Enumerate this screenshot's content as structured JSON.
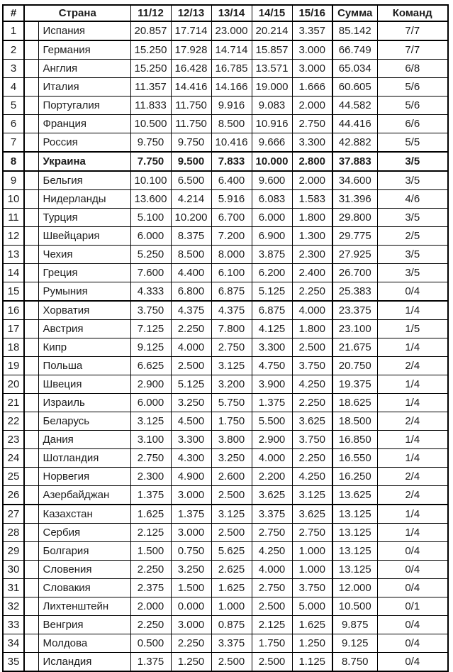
{
  "table": {
    "headers": {
      "rank": "#",
      "country": "Страна",
      "seasons": [
        "11/12",
        "12/13",
        "13/14",
        "14/15",
        "15/16"
      ],
      "sum": "Сумма",
      "teams": "Команд"
    },
    "rows": [
      {
        "rank": "1",
        "country": "Испания",
        "seasons": [
          "20.857",
          "17.714",
          "23.000",
          "20.214",
          "3.357"
        ],
        "sum": "85.142",
        "teams": "7/7",
        "highlight": false,
        "thick_bottom": true
      },
      {
        "rank": "2",
        "country": "Германия",
        "seasons": [
          "15.250",
          "17.928",
          "14.714",
          "15.857",
          "3.000"
        ],
        "sum": "66.749",
        "teams": "7/7",
        "highlight": false,
        "thick_bottom": false
      },
      {
        "rank": "3",
        "country": "Англия",
        "seasons": [
          "15.250",
          "16.428",
          "16.785",
          "13.571",
          "3.000"
        ],
        "sum": "65.034",
        "teams": "6/8",
        "highlight": false,
        "thick_bottom": false
      },
      {
        "rank": "4",
        "country": "Италия",
        "seasons": [
          "11.357",
          "14.416",
          "14.166",
          "19.000",
          "1.666"
        ],
        "sum": "60.605",
        "teams": "5/6",
        "highlight": false,
        "thick_bottom": false
      },
      {
        "rank": "5",
        "country": "Португалия",
        "seasons": [
          "11.833",
          "11.750",
          "9.916",
          "9.083",
          "2.000"
        ],
        "sum": "44.582",
        "teams": "5/6",
        "highlight": false,
        "thick_bottom": false
      },
      {
        "rank": "6",
        "country": "Франция",
        "seasons": [
          "10.500",
          "11.750",
          "8.500",
          "10.916",
          "2.750"
        ],
        "sum": "44.416",
        "teams": "6/6",
        "highlight": false,
        "thick_bottom": false
      },
      {
        "rank": "7",
        "country": "Россия",
        "seasons": [
          "9.750",
          "9.750",
          "10.416",
          "9.666",
          "3.300"
        ],
        "sum": "42.882",
        "teams": "5/5",
        "highlight": false,
        "thick_bottom": true
      },
      {
        "rank": "8",
        "country": "Украина",
        "seasons": [
          "7.750",
          "9.500",
          "7.833",
          "10.000",
          "2.800"
        ],
        "sum": "37.883",
        "teams": "3/5",
        "highlight": true,
        "thick_bottom": true
      },
      {
        "rank": "9",
        "country": "Бельгия",
        "seasons": [
          "10.100",
          "6.500",
          "6.400",
          "9.600",
          "2.000"
        ],
        "sum": "34.600",
        "teams": "3/5",
        "highlight": false,
        "thick_bottom": false
      },
      {
        "rank": "10",
        "country": "Нидерланды",
        "seasons": [
          "13.600",
          "4.214",
          "5.916",
          "6.083",
          "1.583"
        ],
        "sum": "31.396",
        "teams": "4/6",
        "highlight": false,
        "thick_bottom": false
      },
      {
        "rank": "11",
        "country": "Турция",
        "seasons": [
          "5.100",
          "10.200",
          "6.700",
          "6.000",
          "1.800"
        ],
        "sum": "29.800",
        "teams": "3/5",
        "highlight": false,
        "thick_bottom": false
      },
      {
        "rank": "12",
        "country": "Швейцария",
        "seasons": [
          "6.000",
          "8.375",
          "7.200",
          "6.900",
          "1.300"
        ],
        "sum": "29.775",
        "teams": "2/5",
        "highlight": false,
        "thick_bottom": false
      },
      {
        "rank": "13",
        "country": "Чехия",
        "seasons": [
          "5.250",
          "8.500",
          "8.000",
          "3.875",
          "2.300"
        ],
        "sum": "27.925",
        "teams": "3/5",
        "highlight": false,
        "thick_bottom": false
      },
      {
        "rank": "14",
        "country": "Греция",
        "seasons": [
          "7.600",
          "4.400",
          "6.100",
          "6.200",
          "2.400"
        ],
        "sum": "26.700",
        "teams": "3/5",
        "highlight": false,
        "thick_bottom": false
      },
      {
        "rank": "15",
        "country": "Румыния",
        "seasons": [
          "4.333",
          "6.800",
          "6.875",
          "5.125",
          "2.250"
        ],
        "sum": "25.383",
        "teams": "0/4",
        "highlight": false,
        "thick_bottom": true
      },
      {
        "rank": "16",
        "country": "Хорватия",
        "seasons": [
          "3.750",
          "4.375",
          "4.375",
          "6.875",
          "4.000"
        ],
        "sum": "23.375",
        "teams": "1/4",
        "highlight": false,
        "thick_bottom": false
      },
      {
        "rank": "17",
        "country": "Австрия",
        "seasons": [
          "7.125",
          "2.250",
          "7.800",
          "4.125",
          "1.800"
        ],
        "sum": "23.100",
        "teams": "1/5",
        "highlight": false,
        "thick_bottom": false
      },
      {
        "rank": "18",
        "country": "Кипр",
        "seasons": [
          "9.125",
          "4.000",
          "2.750",
          "3.300",
          "2.500"
        ],
        "sum": "21.675",
        "teams": "1/4",
        "highlight": false,
        "thick_bottom": false
      },
      {
        "rank": "19",
        "country": "Польша",
        "seasons": [
          "6.625",
          "2.500",
          "3.125",
          "4.750",
          "3.750"
        ],
        "sum": "20.750",
        "teams": "2/4",
        "highlight": false,
        "thick_bottom": false
      },
      {
        "rank": "20",
        "country": "Швеция",
        "seasons": [
          "2.900",
          "5.125",
          "3.200",
          "3.900",
          "4.250"
        ],
        "sum": "19.375",
        "teams": "1/4",
        "highlight": false,
        "thick_bottom": false
      },
      {
        "rank": "21",
        "country": "Израиль",
        "seasons": [
          "6.000",
          "3.250",
          "5.750",
          "1.375",
          "2.250"
        ],
        "sum": "18.625",
        "teams": "1/4",
        "highlight": false,
        "thick_bottom": false
      },
      {
        "rank": "22",
        "country": "Беларусь",
        "seasons": [
          "3.125",
          "4.500",
          "1.750",
          "5.500",
          "3.625"
        ],
        "sum": "18.500",
        "teams": "2/4",
        "highlight": false,
        "thick_bottom": false
      },
      {
        "rank": "23",
        "country": "Дания",
        "seasons": [
          "3.100",
          "3.300",
          "3.800",
          "2.900",
          "3.750"
        ],
        "sum": "16.850",
        "teams": "1/4",
        "highlight": false,
        "thick_bottom": false
      },
      {
        "rank": "24",
        "country": "Шотландия",
        "seasons": [
          "2.750",
          "4.300",
          "3.250",
          "4.000",
          "2.250"
        ],
        "sum": "16.550",
        "teams": "1/4",
        "highlight": false,
        "thick_bottom": false
      },
      {
        "rank": "25",
        "country": "Норвегия",
        "seasons": [
          "2.300",
          "4.900",
          "2.600",
          "2.200",
          "4.250"
        ],
        "sum": "16.250",
        "teams": "2/4",
        "highlight": false,
        "thick_bottom": false
      },
      {
        "rank": "26",
        "country": "Азербайджан",
        "seasons": [
          "1.375",
          "3.000",
          "2.500",
          "3.625",
          "3.125"
        ],
        "sum": "13.625",
        "teams": "2/4",
        "highlight": false,
        "thick_bottom": true
      },
      {
        "rank": "27",
        "country": "Казахстан",
        "seasons": [
          "1.625",
          "1.375",
          "3.125",
          "3.375",
          "3.625"
        ],
        "sum": "13.125",
        "teams": "1/4",
        "highlight": false,
        "thick_bottom": false
      },
      {
        "rank": "28",
        "country": "Сербия",
        "seasons": [
          "2.125",
          "3.000",
          "2.500",
          "2.750",
          "2.750"
        ],
        "sum": "13.125",
        "teams": "1/4",
        "highlight": false,
        "thick_bottom": false
      },
      {
        "rank": "29",
        "country": "Болгария",
        "seasons": [
          "1.500",
          "0.750",
          "5.625",
          "4.250",
          "1.000"
        ],
        "sum": "13.125",
        "teams": "0/4",
        "highlight": false,
        "thick_bottom": false
      },
      {
        "rank": "30",
        "country": "Словения",
        "seasons": [
          "2.250",
          "3.250",
          "2.625",
          "4.000",
          "1.000"
        ],
        "sum": "13.125",
        "teams": "0/4",
        "highlight": false,
        "thick_bottom": false
      },
      {
        "rank": "31",
        "country": "Словакия",
        "seasons": [
          "2.375",
          "1.500",
          "1.625",
          "2.750",
          "3.750"
        ],
        "sum": "12.000",
        "teams": "0/4",
        "highlight": false,
        "thick_bottom": false
      },
      {
        "rank": "32",
        "country": "Лихтенштейн",
        "seasons": [
          "2.000",
          "0.000",
          "1.000",
          "2.500",
          "5.000"
        ],
        "sum": "10.500",
        "teams": "0/1",
        "highlight": false,
        "thick_bottom": false
      },
      {
        "rank": "33",
        "country": "Венгрия",
        "seasons": [
          "2.250",
          "3.000",
          "0.875",
          "2.125",
          "1.625"
        ],
        "sum": "9.875",
        "teams": "0/4",
        "highlight": false,
        "thick_bottom": false
      },
      {
        "rank": "34",
        "country": "Молдова",
        "seasons": [
          "0.500",
          "2.250",
          "3.375",
          "1.750",
          "1.250"
        ],
        "sum": "9.125",
        "teams": "0/4",
        "highlight": false,
        "thick_bottom": false
      },
      {
        "rank": "35",
        "country": "Исландия",
        "seasons": [
          "1.375",
          "1.250",
          "2.500",
          "2.500",
          "1.125"
        ],
        "sum": "8.750",
        "teams": "0/4",
        "highlight": false,
        "thick_bottom": false
      }
    ]
  }
}
